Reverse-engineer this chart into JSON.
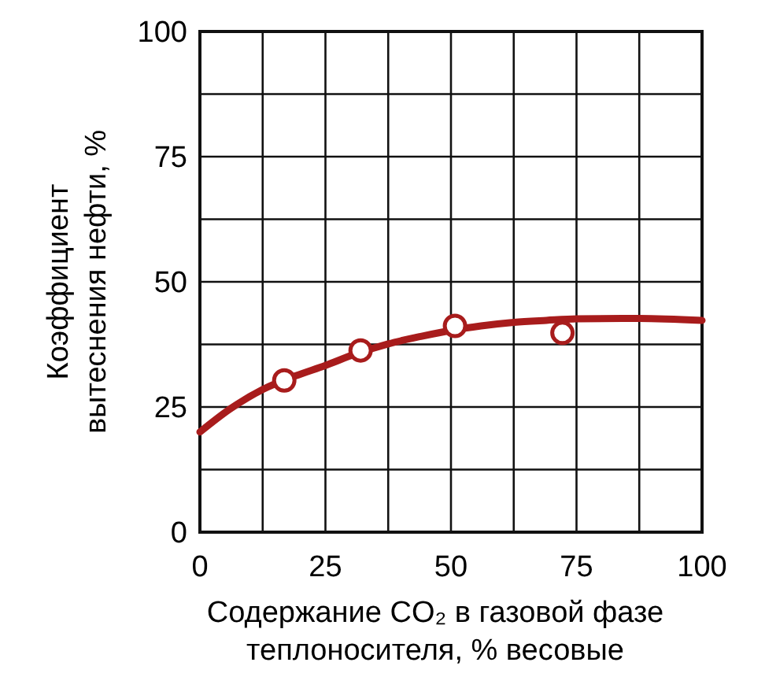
{
  "chart_data": {
    "type": "line",
    "xlabel": "Содержание CO₂ в газовой фазе\nтеплоносителя, % весовые",
    "ylabel": "Коэффициент\nвытеснения нефти, %",
    "xlim": [
      0,
      100
    ],
    "ylim": [
      0,
      100
    ],
    "xticks": [
      0,
      {
        "value": 12.5,
        "label": null
      },
      25,
      {
        "value": 37.5,
        "label": null
      },
      50,
      {
        "value": 62.5,
        "label": null
      },
      75,
      {
        "value": 87.5,
        "label": null
      },
      100
    ],
    "yticks": [
      0,
      {
        "value": 12.5,
        "label": null
      },
      25,
      {
        "value": 37.5,
        "label": null
      },
      50,
      {
        "value": 62.5,
        "label": null
      },
      75,
      {
        "value": 87.5,
        "label": null
      },
      100
    ],
    "grid": true,
    "series": [
      {
        "color": "#a81c1c",
        "marker": "none",
        "x": [
          0,
          6,
          12.5,
          19,
          25,
          31,
          37.5,
          44,
          50,
          56,
          62.5,
          69,
          75,
          87.5,
          100
        ],
        "values": [
          20,
          24.6,
          28.5,
          31.2,
          33.3,
          35.6,
          37.6,
          39.1,
          40.3,
          41.2,
          41.9,
          42.3,
          42.6,
          42.7,
          42.3
        ]
      },
      {
        "type": "scatter",
        "color": "#a81c1c",
        "marker": "circle",
        "x": [
          16.8,
          32,
          50.8,
          72.2
        ],
        "values": [
          30.3,
          36.3,
          41.2,
          39.8
        ]
      }
    ]
  }
}
